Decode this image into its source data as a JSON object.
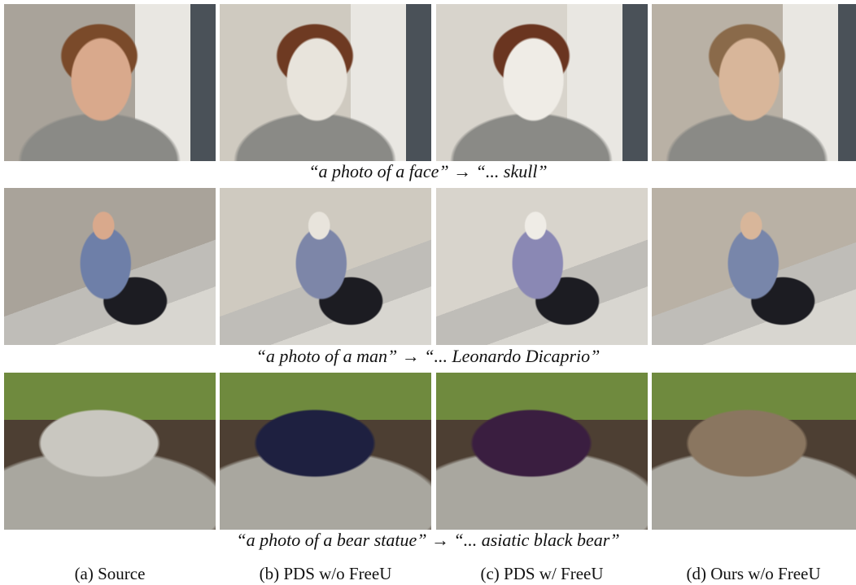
{
  "figure": {
    "rows": [
      {
        "caption": "“a photo of a face” → “... skull”"
      },
      {
        "caption": "“a photo of a man” → “... Leonardo Dicaprio”"
      },
      {
        "caption": "“a photo of a bear statue” → “... asiatic black bear”"
      }
    ],
    "columns": [
      "(a) Source",
      "(b) PDS w/o FreeU",
      "(c) PDS w/ FreeU",
      "(d) Ours w/o FreeU"
    ]
  }
}
